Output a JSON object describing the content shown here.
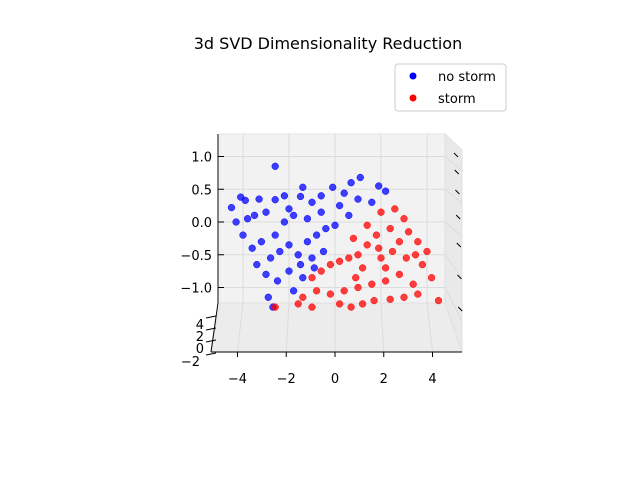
{
  "chart_data": {
    "type": "scatter",
    "projection": "3d",
    "title": "3d SVD Dimensionality Reduction",
    "xlabel": "",
    "ylabel": "",
    "zlabel": "",
    "x_ticks": [
      "−4",
      "−2",
      "0",
      "2",
      "4"
    ],
    "depth_ticks": [
      "−2",
      "0",
      "2",
      "4"
    ],
    "z_ticks": [
      "1.0",
      "0.5",
      "0.0",
      "−0.5",
      "−1.0"
    ],
    "xlim": [
      -5.5,
      5.5
    ],
    "zlim": [
      -1.25,
      1.3
    ],
    "grid": true,
    "legend": {
      "placement": "top-right"
    },
    "series": [
      {
        "name": "no storm",
        "color": "#0000ff",
        "points": [
          [
            -2.6,
            0.85
          ],
          [
            -4.5,
            0.22
          ],
          [
            -4.1,
            0.38
          ],
          [
            -3.9,
            0.33
          ],
          [
            -3.3,
            0.35
          ],
          [
            -2.6,
            0.34
          ],
          [
            -2.2,
            0.4
          ],
          [
            -1.4,
            0.53
          ],
          [
            -0.1,
            0.53
          ],
          [
            0.7,
            0.6
          ],
          [
            1.1,
            0.68
          ],
          [
            1.9,
            0.55
          ],
          [
            2.2,
            0.47
          ],
          [
            0.4,
            0.44
          ],
          [
            -0.6,
            0.4
          ],
          [
            -1.5,
            0.39
          ],
          [
            -3.5,
            0.1
          ],
          [
            -3.0,
            0.15
          ],
          [
            -2.0,
            0.2
          ],
          [
            -1.0,
            0.3
          ],
          [
            0.2,
            0.25
          ],
          [
            1.0,
            0.35
          ],
          [
            1.6,
            0.3
          ],
          [
            -4.0,
            -0.2
          ],
          [
            -3.6,
            -0.4
          ],
          [
            -3.2,
            -0.3
          ],
          [
            -2.8,
            -0.55
          ],
          [
            -2.4,
            -0.45
          ],
          [
            -2.0,
            -0.35
          ],
          [
            -1.6,
            -0.5
          ],
          [
            -1.2,
            -0.3
          ],
          [
            -0.8,
            -0.2
          ],
          [
            -0.4,
            -0.1
          ],
          [
            0.0,
            -0.05
          ],
          [
            -3.0,
            -0.8
          ],
          [
            -2.5,
            -0.9
          ],
          [
            -2.0,
            -0.75
          ],
          [
            -1.5,
            -0.65
          ],
          [
            -1.0,
            -0.55
          ],
          [
            -2.9,
            -1.15
          ],
          [
            -2.7,
            -1.3
          ],
          [
            -1.8,
            -1.05
          ],
          [
            -3.4,
            -0.65
          ],
          [
            -2.2,
            0.0
          ],
          [
            -1.8,
            0.1
          ],
          [
            -1.2,
            0.05
          ],
          [
            -0.6,
            0.15
          ],
          [
            0.6,
            0.1
          ],
          [
            -2.6,
            -0.2
          ],
          [
            -3.8,
            0.05
          ],
          [
            -4.3,
            0.0
          ],
          [
            -1.4,
            -0.85
          ],
          [
            -0.9,
            -0.7
          ],
          [
            -0.5,
            -0.45
          ]
        ]
      },
      {
        "name": "storm",
        "color": "#ff0000",
        "points": [
          [
            2.0,
            0.15
          ],
          [
            2.6,
            0.2
          ],
          [
            3.0,
            0.05
          ],
          [
            3.2,
            -0.15
          ],
          [
            3.6,
            -0.3
          ],
          [
            2.4,
            -0.1
          ],
          [
            1.8,
            -0.2
          ],
          [
            1.4,
            -0.35
          ],
          [
            1.0,
            -0.5
          ],
          [
            0.6,
            -0.55
          ],
          [
            0.2,
            -0.6
          ],
          [
            -0.2,
            -0.65
          ],
          [
            -0.6,
            -0.75
          ],
          [
            -1.0,
            -0.85
          ],
          [
            3.8,
            -0.65
          ],
          [
            4.2,
            -0.85
          ],
          [
            3.4,
            -0.95
          ],
          [
            2.8,
            -0.8
          ],
          [
            2.2,
            -0.9
          ],
          [
            1.6,
            -0.95
          ],
          [
            1.0,
            -1.0
          ],
          [
            0.4,
            -1.05
          ],
          [
            -0.2,
            -1.1
          ],
          [
            -0.8,
            -1.05
          ],
          [
            -1.4,
            -1.15
          ],
          [
            4.0,
            -0.45
          ],
          [
            3.5,
            -0.5
          ],
          [
            2.5,
            -0.45
          ],
          [
            2.0,
            -0.55
          ],
          [
            1.2,
            -0.7
          ],
          [
            -2.6,
            -1.3
          ],
          [
            -1.6,
            -1.25
          ],
          [
            -1.0,
            -1.3
          ],
          [
            0.2,
            -1.25
          ],
          [
            0.7,
            -1.3
          ],
          [
            1.2,
            -1.25
          ],
          [
            1.7,
            -1.2
          ],
          [
            2.4,
            -1.18
          ],
          [
            3.0,
            -1.15
          ],
          [
            3.6,
            -1.1
          ],
          [
            4.5,
            -1.2
          ],
          [
            0.8,
            -0.25
          ],
          [
            1.4,
            -0.05
          ],
          [
            2.8,
            -0.3
          ],
          [
            3.1,
            -0.55
          ],
          [
            2.2,
            -0.7
          ],
          [
            1.9,
            -0.4
          ],
          [
            0.9,
            -0.85
          ]
        ]
      }
    ]
  }
}
